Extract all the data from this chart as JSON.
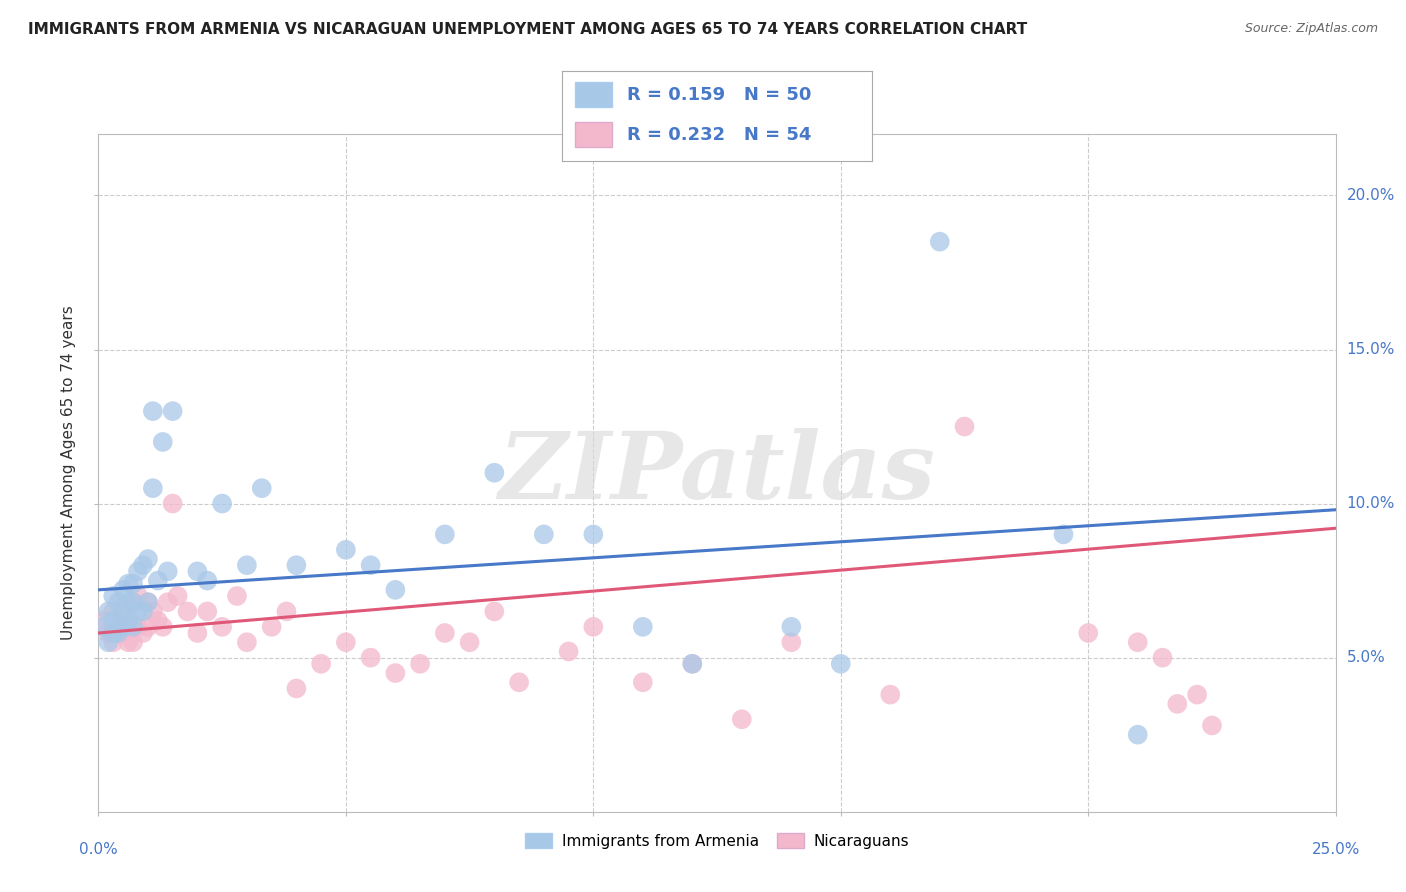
{
  "title": "IMMIGRANTS FROM ARMENIA VS NICARAGUAN UNEMPLOYMENT AMONG AGES 65 TO 74 YEARS CORRELATION CHART",
  "source": "Source: ZipAtlas.com",
  "ylabel": "Unemployment Among Ages 65 to 74 years",
  "xlim": [
    0,
    0.25
  ],
  "ylim": [
    0,
    0.22
  ],
  "legend1_r": "0.159",
  "legend1_n": "50",
  "legend2_r": "0.232",
  "legend2_n": "54",
  "blue_color": "#a8c8e8",
  "pink_color": "#f4b8cc",
  "blue_line_color": "#4878c8",
  "pink_line_color": "#e05878",
  "text_blue_color": "#4878c8",
  "watermark_color": "#d8d8d8",
  "blue_scatter_x": [
    0.001,
    0.002,
    0.002,
    0.003,
    0.003,
    0.003,
    0.004,
    0.004,
    0.004,
    0.005,
    0.005,
    0.005,
    0.006,
    0.006,
    0.006,
    0.007,
    0.007,
    0.007,
    0.008,
    0.008,
    0.009,
    0.009,
    0.01,
    0.01,
    0.011,
    0.011,
    0.012,
    0.013,
    0.014,
    0.015,
    0.02,
    0.022,
    0.025,
    0.03,
    0.033,
    0.04,
    0.05,
    0.055,
    0.06,
    0.07,
    0.08,
    0.09,
    0.1,
    0.11,
    0.12,
    0.14,
    0.15,
    0.17,
    0.195,
    0.21
  ],
  "blue_scatter_y": [
    0.06,
    0.055,
    0.065,
    0.058,
    0.062,
    0.07,
    0.058,
    0.062,
    0.068,
    0.06,
    0.065,
    0.072,
    0.062,
    0.068,
    0.074,
    0.06,
    0.068,
    0.074,
    0.065,
    0.078,
    0.065,
    0.08,
    0.068,
    0.082,
    0.105,
    0.13,
    0.075,
    0.12,
    0.078,
    0.13,
    0.078,
    0.075,
    0.1,
    0.08,
    0.105,
    0.08,
    0.085,
    0.08,
    0.072,
    0.09,
    0.11,
    0.09,
    0.09,
    0.06,
    0.048,
    0.06,
    0.048,
    0.185,
    0.09,
    0.025
  ],
  "pink_scatter_x": [
    0.001,
    0.002,
    0.003,
    0.003,
    0.004,
    0.005,
    0.005,
    0.006,
    0.006,
    0.007,
    0.007,
    0.008,
    0.008,
    0.009,
    0.01,
    0.01,
    0.011,
    0.012,
    0.013,
    0.014,
    0.015,
    0.016,
    0.018,
    0.02,
    0.022,
    0.025,
    0.028,
    0.03,
    0.035,
    0.038,
    0.04,
    0.045,
    0.05,
    0.055,
    0.06,
    0.065,
    0.07,
    0.075,
    0.08,
    0.085,
    0.095,
    0.1,
    0.11,
    0.12,
    0.13,
    0.14,
    0.16,
    0.175,
    0.2,
    0.21,
    0.215,
    0.218,
    0.222,
    0.225
  ],
  "pink_scatter_y": [
    0.062,
    0.058,
    0.055,
    0.065,
    0.06,
    0.058,
    0.065,
    0.055,
    0.062,
    0.055,
    0.068,
    0.06,
    0.07,
    0.058,
    0.06,
    0.068,
    0.065,
    0.062,
    0.06,
    0.068,
    0.1,
    0.07,
    0.065,
    0.058,
    0.065,
    0.06,
    0.07,
    0.055,
    0.06,
    0.065,
    0.04,
    0.048,
    0.055,
    0.05,
    0.045,
    0.048,
    0.058,
    0.055,
    0.065,
    0.042,
    0.052,
    0.06,
    0.042,
    0.048,
    0.03,
    0.055,
    0.038,
    0.125,
    0.058,
    0.055,
    0.05,
    0.035,
    0.038,
    0.028
  ],
  "blue_line_x": [
    0.0,
    0.25
  ],
  "blue_line_y": [
    0.072,
    0.098
  ],
  "pink_line_x": [
    0.0,
    0.25
  ],
  "pink_line_y": [
    0.058,
    0.092
  ],
  "ytick_vals": [
    0.05,
    0.1,
    0.15,
    0.2
  ],
  "xtick_vals": [
    0.0,
    0.05,
    0.1,
    0.15,
    0.2,
    0.25
  ]
}
